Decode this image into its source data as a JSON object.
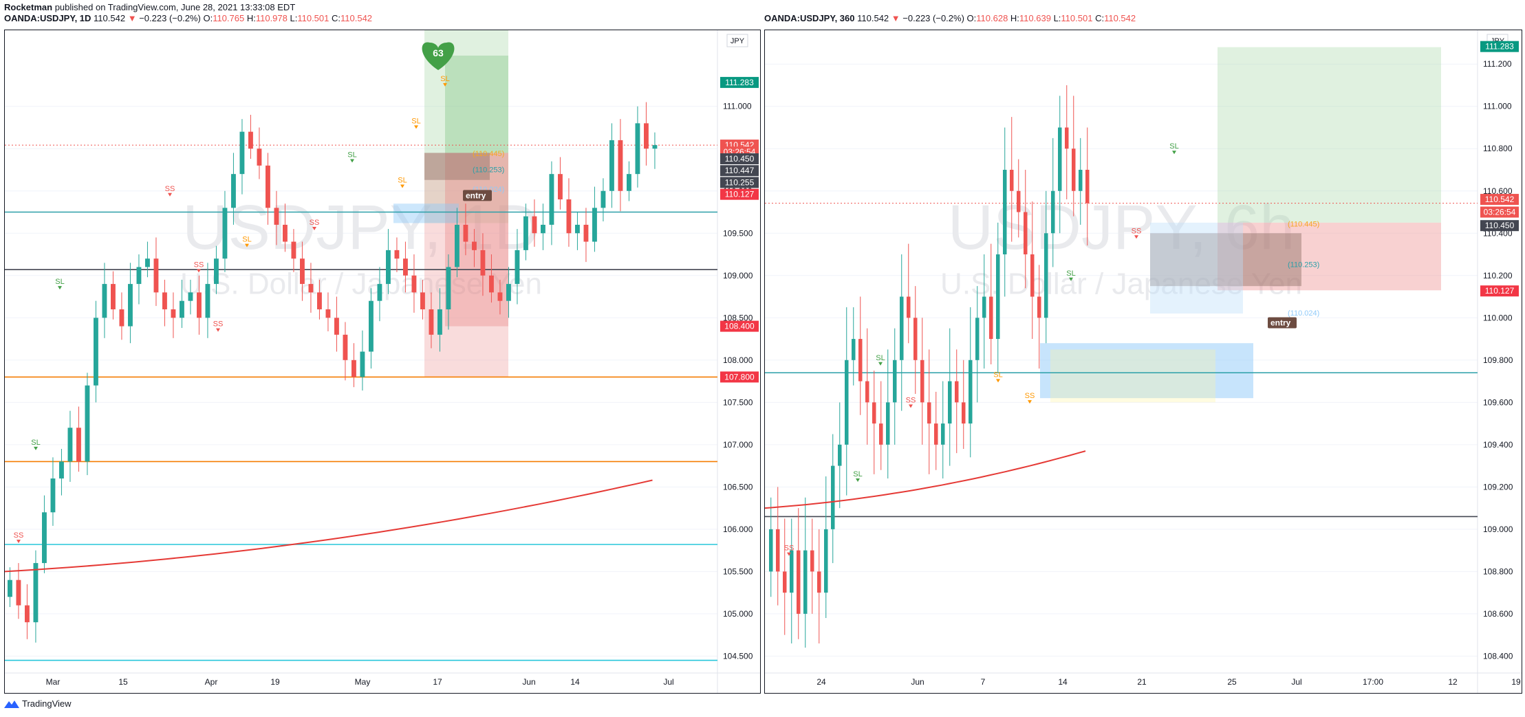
{
  "publisher": {
    "author": "Rocketman",
    "text": "published on TradingView.com, June 28, 2021 13:33:08 EDT"
  },
  "footer": {
    "brand": "TradingView"
  },
  "colors": {
    "up": "#26a69a",
    "down": "#ef5350",
    "ema": "#e53935",
    "grid": "#f0f3fa"
  },
  "charts": [
    {
      "symbol": "OANDA:USDJPY, 1D",
      "last": "110.542",
      "change": "−0.223 (−0.2%)",
      "ohlc": [
        {
          "k": "O:",
          "v": "110.765"
        },
        {
          "k": "H:",
          "v": "110.978"
        },
        {
          "k": "L:",
          "v": "110.501"
        },
        {
          "k": "C:",
          "v": "110.542"
        }
      ],
      "watermark_symbol": "USDJPY, 1D",
      "watermark_name": "U.S. Dollar / Japanese Yen",
      "currency": "JPY",
      "likes": "63",
      "y_ticks": [
        "111.000",
        "110.500",
        "110.000",
        "109.500",
        "109.000",
        "108.500",
        "108.000",
        "107.500",
        "107.000",
        "106.500",
        "106.000",
        "105.500",
        "105.000",
        "104.500"
      ],
      "x_ticks": [
        "Mar",
        "15",
        "Apr",
        "19",
        "May",
        "17",
        "Jun",
        "14",
        "Jul"
      ],
      "price_labels": [
        {
          "text": "111.283",
          "price": 111.283,
          "bg": "#089981"
        },
        {
          "text": "110.542",
          "price": 110.542,
          "bg": "#ef5350"
        },
        {
          "text": "03:26:54",
          "price": 110.46,
          "bg": "#ef5350"
        },
        {
          "text": "110.450",
          "price": 110.38,
          "bg": "#434651"
        },
        {
          "text": "110.447",
          "price": 110.24,
          "bg": "#434651"
        },
        {
          "text": "110.255",
          "price": 110.1,
          "bg": "#434651"
        },
        {
          "text": "110.127",
          "price": 109.96,
          "bg": "#f23645"
        },
        {
          "text": "108.400",
          "price": 108.4,
          "bg": "#f23645"
        },
        {
          "text": "107.800",
          "price": 107.8,
          "bg": "#f23645"
        }
      ],
      "level_notes": [
        "(110.445)",
        "(110.253)",
        "(110.024)"
      ],
      "entry_label": "entry",
      "signal_labels": [
        "SL",
        "SS"
      ],
      "chart_data": {
        "type": "candlestick",
        "title": "OANDA:USDJPY, 1D",
        "ylim": [
          104.3,
          111.9
        ],
        "ohlc_last": {
          "open": 110.765,
          "high": 110.978,
          "low": 110.501,
          "close": 110.542
        },
        "horizontal_levels": [
          109.75,
          109.07,
          107.8,
          106.8,
          105.82,
          104.45
        ],
        "ema_start": 105.5,
        "ema_end": 106.58,
        "closes": [
          105.4,
          105.1,
          104.9,
          105.6,
          106.2,
          106.6,
          106.8,
          107.2,
          106.8,
          107.7,
          108.5,
          108.9,
          108.6,
          108.4,
          108.9,
          109.1,
          109.2,
          108.8,
          108.6,
          108.5,
          108.7,
          108.8,
          108.5,
          108.9,
          109.2,
          109.8,
          110.2,
          110.7,
          110.5,
          110.3,
          109.8,
          109.6,
          109.4,
          109.2,
          108.9,
          108.8,
          108.6,
          108.5,
          108.3,
          108.0,
          107.8,
          108.1,
          108.7,
          108.9,
          109.3,
          109.2,
          109.0,
          108.8,
          108.6,
          108.3,
          108.6,
          109.1,
          109.6,
          109.4,
          109.3,
          109.0,
          108.8,
          108.7,
          108.9,
          109.3,
          109.7,
          109.5,
          109.6,
          110.2,
          109.9,
          109.5,
          109.6,
          109.4,
          109.8,
          110.0,
          110.6,
          110.0,
          110.2,
          110.8,
          110.5,
          110.542
        ]
      }
    },
    {
      "symbol": "OANDA:USDJPY, 360",
      "last": "110.542",
      "change": "−0.223 (−0.2%)",
      "ohlc": [
        {
          "k": "O:",
          "v": "110.628"
        },
        {
          "k": "H:",
          "v": "110.639"
        },
        {
          "k": "L:",
          "v": "110.501"
        },
        {
          "k": "C:",
          "v": "110.542"
        }
      ],
      "watermark_symbol": "USDJPY, 6h",
      "watermark_name": "U.S. Dollar / Japanese Yen",
      "currency": "JPY",
      "y_ticks": [
        "111.200",
        "111.000",
        "110.800",
        "110.600",
        "110.400",
        "110.200",
        "110.000",
        "109.800",
        "109.600",
        "109.400",
        "109.200",
        "109.000",
        "108.800",
        "108.600",
        "108.400"
      ],
      "x_ticks": [
        "24",
        "Jun",
        "7",
        "14",
        "21",
        "25",
        "Jul",
        "17:00",
        "12",
        "19"
      ],
      "price_labels": [
        {
          "text": "111.283",
          "price": 111.283,
          "bg": "#089981"
        },
        {
          "text": "110.542",
          "price": 110.56,
          "bg": "#ef5350"
        },
        {
          "text": "03:26:54",
          "price": 110.5,
          "bg": "#ef5350"
        },
        {
          "text": "110.450",
          "price": 110.436,
          "bg": "#434651"
        },
        {
          "text": "110.127",
          "price": 110.127,
          "bg": "#f23645"
        }
      ],
      "level_notes": [
        "(110.445)",
        "(110.253)",
        "(110.024)"
      ],
      "entry_label": "entry",
      "signal_labels": [
        "SL",
        "SS"
      ],
      "chart_data": {
        "type": "candlestick",
        "title": "OANDA:USDJPY, 360",
        "ylim": [
          108.32,
          111.36
        ],
        "ohlc_last": {
          "open": 110.628,
          "high": 110.639,
          "low": 110.501,
          "close": 110.542
        },
        "horizontal_levels": [
          109.74,
          109.06
        ],
        "ema_start": 109.1,
        "ema_end": 109.37,
        "closes": [
          109.0,
          108.8,
          108.7,
          108.9,
          108.6,
          108.9,
          108.8,
          108.7,
          109.0,
          109.3,
          109.4,
          109.8,
          109.9,
          109.7,
          109.6,
          109.5,
          109.4,
          109.6,
          109.8,
          110.1,
          110.0,
          109.8,
          109.6,
          109.5,
          109.4,
          109.5,
          109.7,
          109.6,
          109.5,
          109.8,
          110.0,
          110.1,
          109.9,
          110.3,
          110.7,
          110.6,
          110.5,
          110.3,
          110.1,
          110.0,
          110.4,
          110.6,
          110.9,
          110.8,
          110.6,
          110.7,
          110.542
        ]
      }
    }
  ]
}
